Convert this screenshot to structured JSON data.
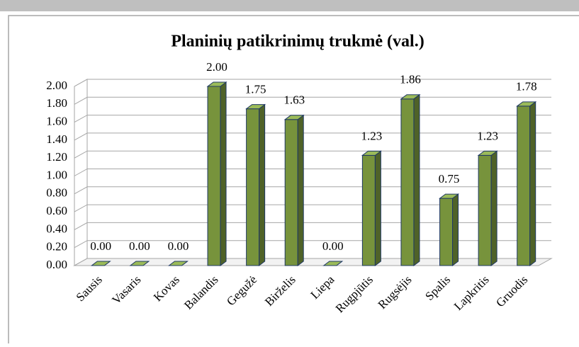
{
  "chart_data": {
    "type": "bar3d",
    "title": "Planinių patikrinimų trukmė (val.)",
    "categories": [
      "Sausis",
      "Vasaris",
      "Kovas",
      "Balandis",
      "Gegužė",
      "Birželis",
      "Liepa",
      "Rugpjūtis",
      "Rugsėjis",
      "Spalis",
      "Lapkritis",
      "Gruodis"
    ],
    "values": [
      0,
      0,
      0,
      2.0,
      1.75,
      1.63,
      0,
      1.23,
      1.86,
      0.75,
      1.23,
      1.78
    ],
    "value_labels": [
      "0.00",
      "0.00",
      "0.00",
      "2.00",
      "1.75",
      "1.63",
      "0.00",
      "1.23",
      "1.86",
      "0.75",
      "1.23",
      "1.78"
    ],
    "color": "#77933c",
    "ylim": [
      0,
      2.0
    ],
    "yticks": [
      {
        "value": 0,
        "label": "0.00"
      },
      {
        "value": 0.2,
        "label": "0.20"
      },
      {
        "value": 0.4,
        "label": "0.40"
      },
      {
        "value": 0.6,
        "label": "0.60"
      },
      {
        "value": 0.8,
        "label": "0.80"
      },
      {
        "value": 1.0,
        "label": "1.00"
      },
      {
        "value": 1.2,
        "label": "1.20"
      },
      {
        "value": 1.4,
        "label": "1.40"
      },
      {
        "value": 1.6,
        "label": "1.60"
      },
      {
        "value": 1.8,
        "label": "1.80"
      },
      {
        "value": 2.0,
        "label": "2.00"
      }
    ],
    "grid": true
  }
}
